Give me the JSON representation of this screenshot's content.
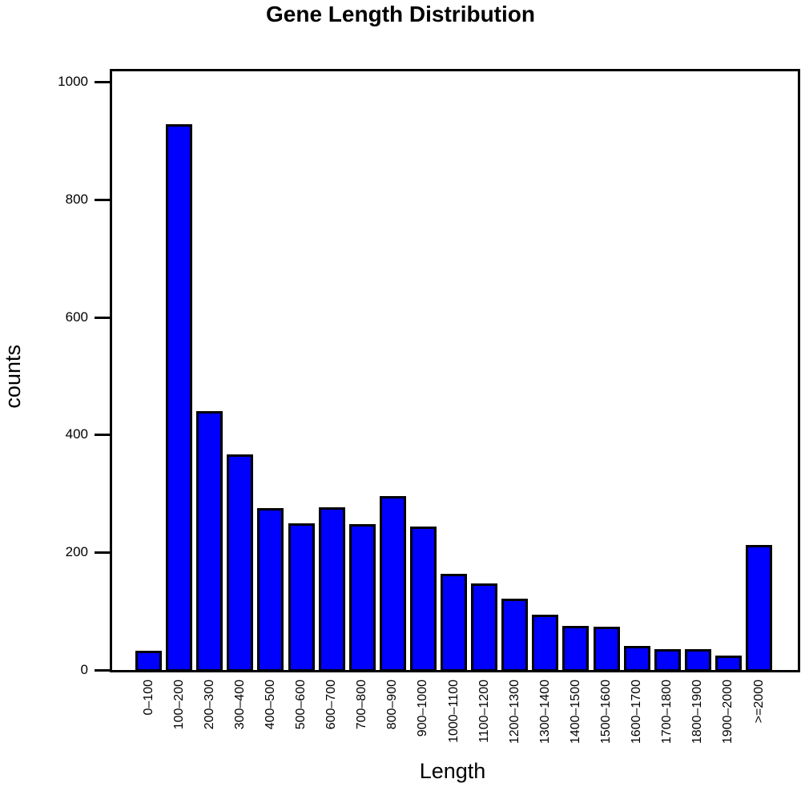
{
  "chart_data": {
    "type": "bar",
    "title": "Gene Length Distribution",
    "xlabel": "Length",
    "ylabel": "counts",
    "ylim": [
      0,
      1000
    ],
    "yticks": [
      "0",
      "200",
      "400",
      "600",
      "800",
      "1000"
    ],
    "grid": false,
    "legend": null,
    "bar_color": "#0000ff",
    "categories": [
      "0-100",
      "100-200",
      "200-300",
      "300-400",
      "400-500",
      "500-600",
      "600-700",
      "700-800",
      "800-900",
      "900-1000",
      "1000-1100",
      "1100-1200",
      "1200-1300",
      "1300-1400",
      "1400-1500",
      "1500-1600",
      "1600-1700",
      "1700-1800",
      "1800-1900",
      "1900-2000",
      ">=2000"
    ],
    "values": [
      33,
      928,
      440,
      366,
      275,
      250,
      277,
      248,
      296,
      244,
      163,
      147,
      121,
      94,
      75,
      73,
      41,
      36,
      35,
      25,
      212
    ]
  }
}
